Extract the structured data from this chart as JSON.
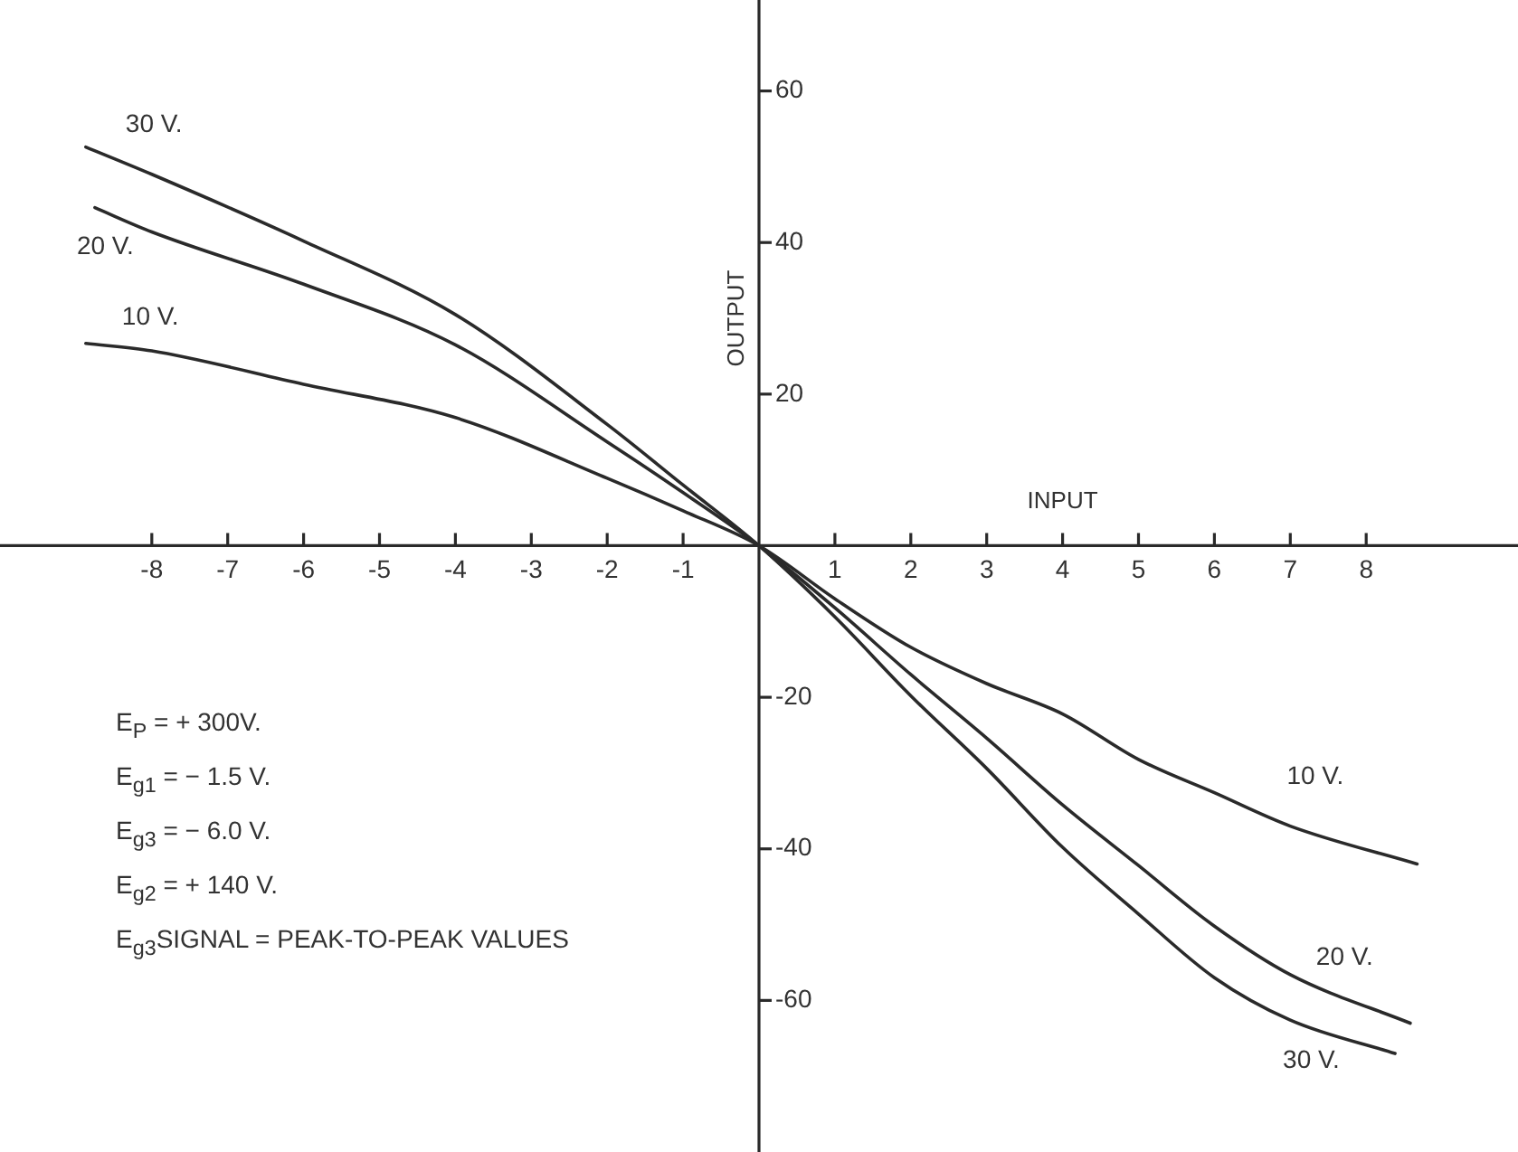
{
  "chart_data": {
    "type": "line",
    "xlabel": "INPUT",
    "ylabel": "OUTPUT",
    "xlim": [
      -10,
      10
    ],
    "ylim": [
      -80,
      72
    ],
    "xticks": [
      -8,
      -7,
      -6,
      -5,
      -4,
      -3,
      -2,
      -1,
      1,
      2,
      3,
      4,
      5,
      6,
      7,
      8
    ],
    "yticks": [
      -60,
      -40,
      -20,
      20,
      40,
      60
    ],
    "grid": false,
    "legend": false,
    "marker": "none",
    "line_style": "solid",
    "series": [
      {
        "name": "30 V.",
        "color": "#2a2a2a",
        "x": [
          -8.87,
          -8,
          -6,
          -4,
          -2,
          -1,
          0,
          1,
          2,
          3,
          4,
          5,
          6,
          7,
          8.38
        ],
        "values": [
          52.6,
          49,
          40.2,
          30.5,
          16,
          8,
          0,
          -9.4,
          -19.8,
          -29.4,
          -39.8,
          -48.6,
          -57,
          -62.6,
          -67
        ]
      },
      {
        "name": "20 V.",
        "color": "#2a2a2a",
        "x": [
          -8.75,
          -8,
          -6,
          -4,
          -2,
          -1,
          0,
          1,
          2,
          3,
          4,
          5,
          6,
          7,
          8.58
        ],
        "values": [
          44.6,
          41.4,
          34.5,
          26.5,
          13.7,
          7,
          0,
          -8.2,
          -17,
          -25.4,
          -34.2,
          -42.2,
          -50.2,
          -56.6,
          -63
        ]
      },
      {
        "name": "10 V.",
        "color": "#2a2a2a",
        "x": [
          -8.87,
          -8,
          -6,
          -4,
          -2,
          -1,
          0,
          1,
          2,
          3,
          4,
          5,
          6,
          7,
          8.67
        ],
        "values": [
          26.7,
          25.7,
          21.3,
          16.9,
          8.9,
          4.6,
          0,
          -7,
          -13.4,
          -18.2,
          -22.2,
          -28.2,
          -32.6,
          -37,
          -42
        ]
      }
    ],
    "annotations": [
      "E$_{P}$ = + 300V.",
      "E$_{g1}$ = − 1.5 V.",
      "E$_{g3}$ = − 6.0 V.",
      "E$_{g2}$ = + 140 V.",
      "E$_{g3}$SIGNAL = PEAK-TO-PEAK VALUES"
    ]
  }
}
